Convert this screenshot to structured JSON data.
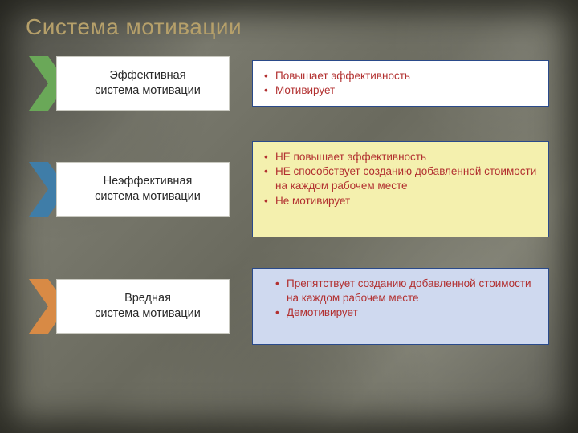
{
  "title": {
    "text": "Система мотивации",
    "color": "#b6a06a",
    "fontsize": 28,
    "weight": "normal"
  },
  "rows": [
    {
      "arrow": {
        "label": "Эффективная\nсистема мотивации",
        "chevron_color": "#6aa858",
        "height": 68
      },
      "box": {
        "bg": "#ffffff",
        "border": "#2a4a8a",
        "text_color": "#b23030",
        "bullets": [
          "Повышает эффективность",
          "Мотивирует"
        ]
      }
    },
    {
      "arrow": {
        "label": "Неэффективная\nсистема мотивации",
        "chevron_color": "#3f7da8",
        "height": 68
      },
      "box": {
        "bg": "#f4f0ae",
        "border": "#2a4a8a",
        "text_color": "#b23030",
        "bullets": [
          "НЕ повышает эффективность",
          "НЕ способствует созданию  добавленной стоимости на каждом рабочем месте",
          "Не мотивирует"
        ]
      },
      "tall": true
    },
    {
      "arrow": {
        "label": "Вредная\nсистема мотивации",
        "chevron_color": "#d88a45",
        "height": 68
      },
      "box": {
        "bg": "#cfd9ef",
        "border": "#2a4a8a",
        "text_color": "#b23030",
        "bullets": [
          "Препятствует  созданию добавленной стоимости на каждом рабочем месте",
          "Демотивирует"
        ]
      }
    }
  ],
  "label_color": "#2a2a2a",
  "label_fontsize": 14.5,
  "bullet_fontsize": 13.5,
  "background_base": "#6a6a5e"
}
